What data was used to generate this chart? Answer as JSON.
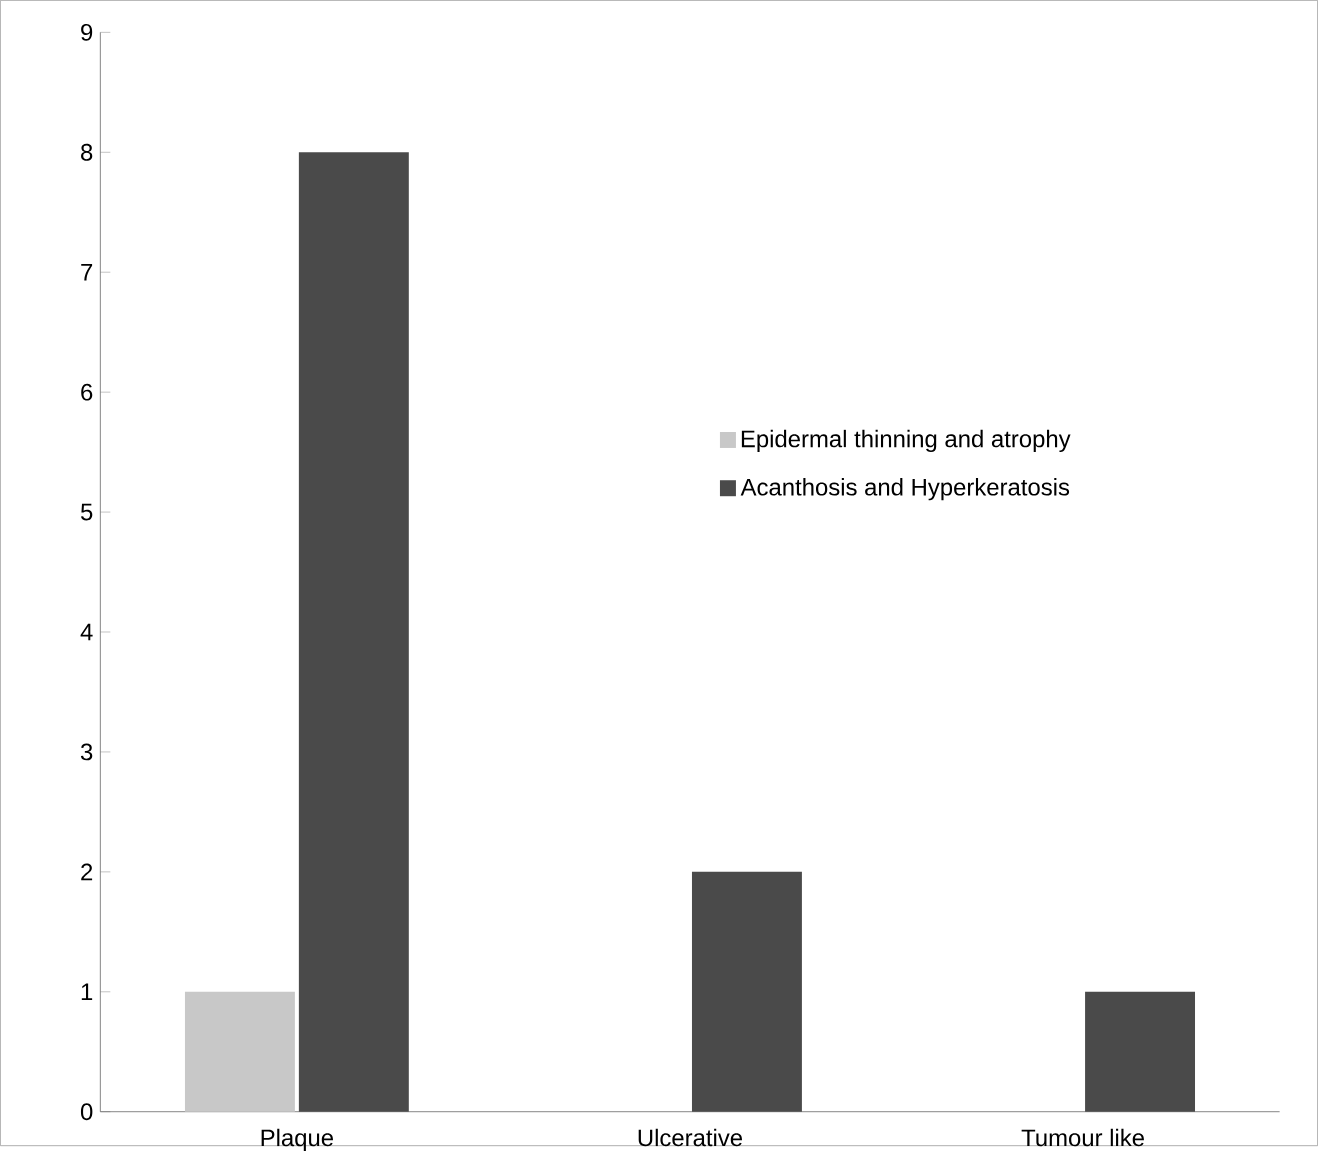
{
  "chart_data": {
    "type": "bar",
    "categories": [
      "Plaque",
      "Ulcerative",
      "Tumour like"
    ],
    "series": [
      {
        "name": "Epidermal thinning and atrophy",
        "color": "#c8c8c8",
        "values": [
          1,
          0,
          0
        ]
      },
      {
        "name": "Acanthosis and Hyperkeratosis",
        "color": "#4a4a4a",
        "values": [
          8,
          2,
          1
        ]
      }
    ],
    "ylim": [
      0,
      9
    ],
    "yticks": [
      0,
      1,
      2,
      3,
      4,
      5,
      6,
      7,
      8,
      9
    ],
    "grid": false,
    "legend": "right"
  }
}
